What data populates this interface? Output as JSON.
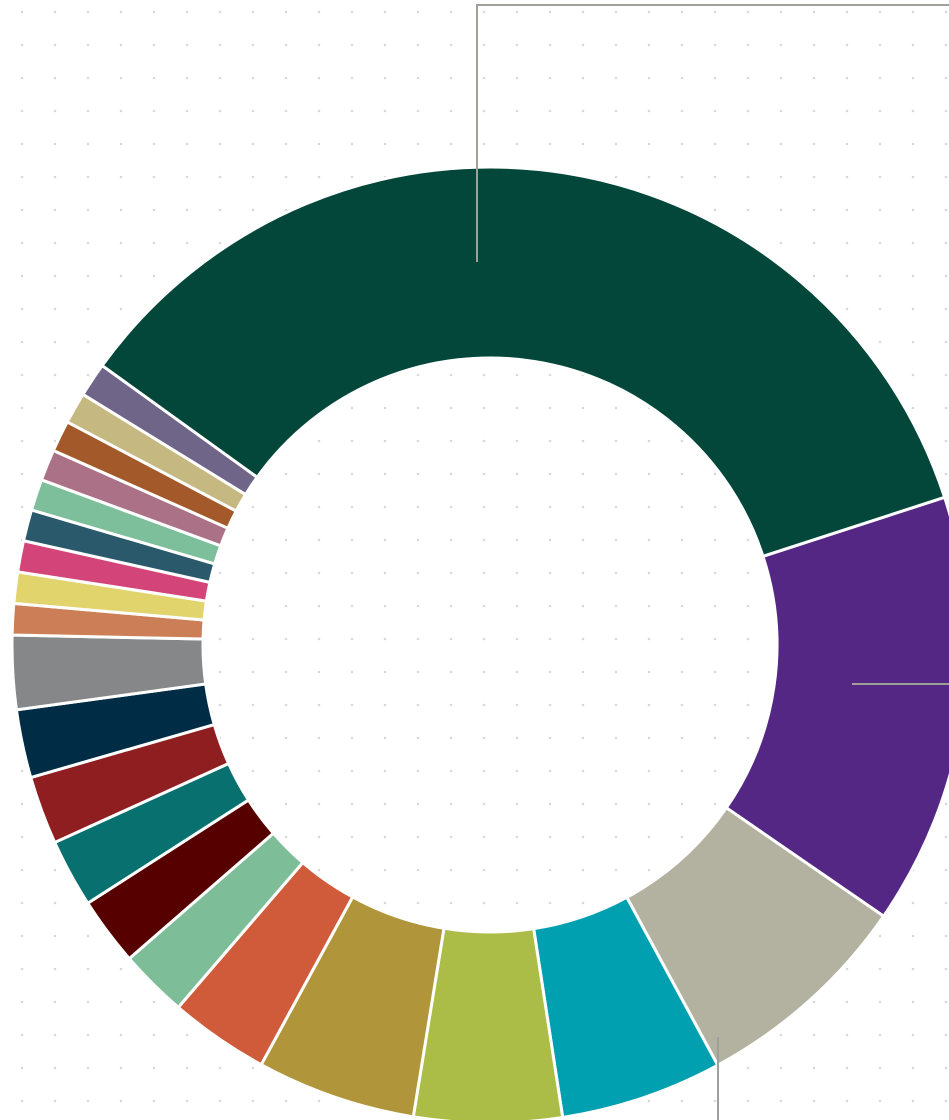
{
  "chart_data": {
    "type": "pie",
    "variant": "donut",
    "title": "",
    "background_pattern": "dot-grid",
    "leader_lines": [
      "top",
      "right",
      "bottom"
    ],
    "slices": [
      {
        "value": 36.5,
        "color": "#02473a"
      },
      {
        "value": 15.2,
        "color": "#532783"
      },
      {
        "value": 7.8,
        "color": "#b3b1a0"
      },
      {
        "value": 5.7,
        "color": "#00a0b0"
      },
      {
        "value": 5.2,
        "color": "#abbd46"
      },
      {
        "value": 5.6,
        "color": "#b0953b"
      },
      {
        "value": 3.5,
        "color": "#d05b3a"
      },
      {
        "value": 2.4,
        "color": "#7dbd98"
      },
      {
        "value": 2.4,
        "color": "#560000"
      },
      {
        "value": 2.4,
        "color": "#08716f"
      },
      {
        "value": 2.4,
        "color": "#8f1e20"
      },
      {
        "value": 2.4,
        "color": "#002c45"
      },
      {
        "value": 2.6,
        "color": "#868788"
      },
      {
        "value": 1.1,
        "color": "#cc7f56"
      },
      {
        "value": 1.1,
        "color": "#e2d46c"
      },
      {
        "value": 1.1,
        "color": "#d34578"
      },
      {
        "value": 1.1,
        "color": "#29596a"
      },
      {
        "value": 1.1,
        "color": "#7dbf9b"
      },
      {
        "value": 1.1,
        "color": "#ab7187"
      },
      {
        "value": 1.1,
        "color": "#a35929"
      },
      {
        "value": 1.1,
        "color": "#c5b880"
      },
      {
        "value": 1.2,
        "color": "#6e6589"
      }
    ]
  }
}
